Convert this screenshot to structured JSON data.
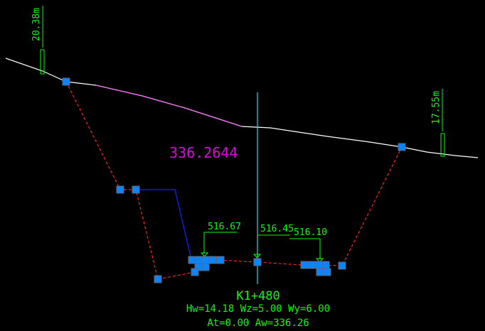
{
  "section": {
    "station": "K1+480",
    "params_line1": "Hw=14.18 Wz=5.00 Wy=6.00",
    "params_line2": "At=0.00 Aw=336.26",
    "area_label": "336.2644",
    "left_width": "20.38m",
    "right_width": "17.55m",
    "elevations": [
      "516.67",
      "516.45",
      "516.10"
    ]
  },
  "colors": {
    "background": "#000000",
    "ground": "#ffffff",
    "design": "#ff2020",
    "structure": "#0000ff",
    "centerline": "#00e5ff",
    "annotation": "#00ff00",
    "area": "#e000e0",
    "node": "#0a84ff"
  }
}
